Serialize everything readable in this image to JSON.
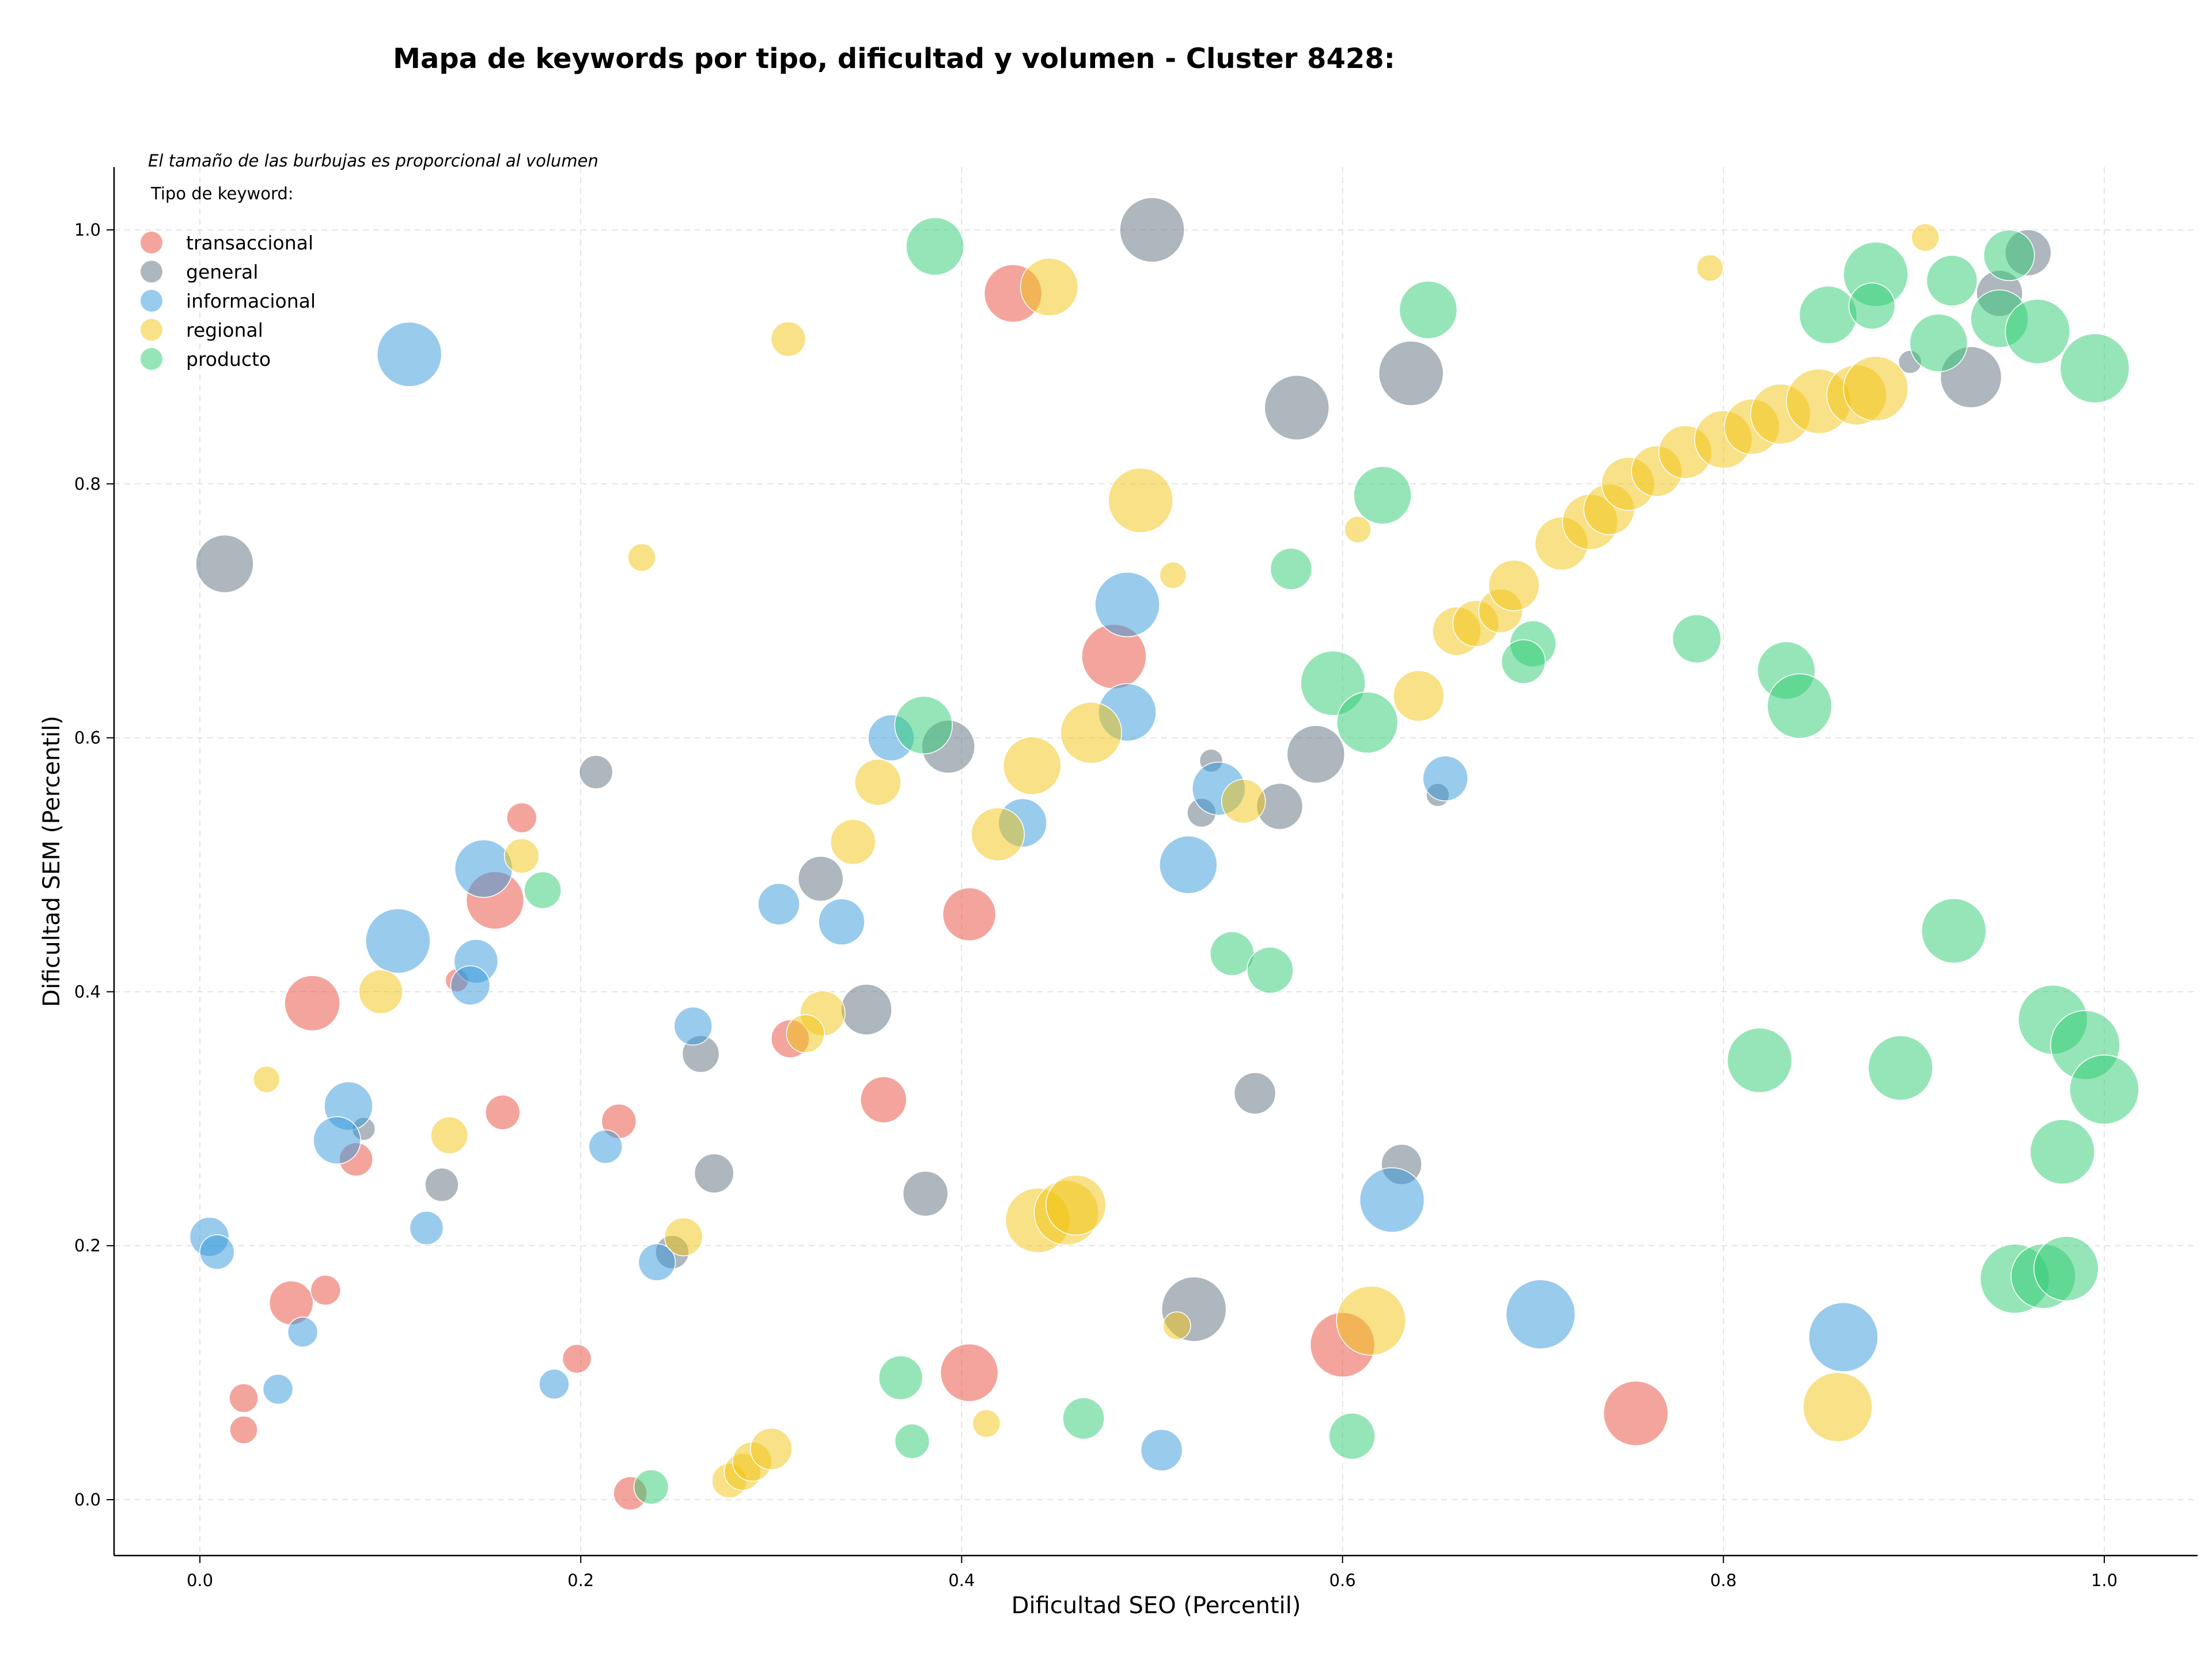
{
  "chart_data": {
    "type": "scatter",
    "title": "Mapa de keywords por tipo, dificultad y volumen - Cluster 8428:",
    "subtitle": "El tamaño de las burbujas es proporcional al volumen",
    "xlabel": "Dificultad SEO (Percentil)",
    "ylabel": "Dificultad SEM (Percentil)",
    "xlim": [
      -0.045,
      1.05
    ],
    "ylim": [
      -0.045,
      1.05
    ],
    "xticks": [
      "0.0",
      "0.2",
      "0.4",
      "0.6",
      "0.8",
      "1.0"
    ],
    "yticks": [
      "0.0",
      "0.2",
      "0.4",
      "0.6",
      "0.8",
      "1.0"
    ],
    "grid": true,
    "legend_title": "Tipo de keyword:",
    "legend_position": "top-left",
    "series": [
      {
        "name": "transaccional",
        "color": "#e74c3c",
        "points": [
          [
            0.427,
            0.95,
            50
          ],
          [
            0.155,
            0.472,
            50
          ],
          [
            0.059,
            0.391,
            48
          ],
          [
            0.169,
            0.537,
            26
          ],
          [
            0.48,
            0.664,
            56
          ],
          [
            0.404,
            0.461,
            46
          ],
          [
            0.31,
            0.363,
            33
          ],
          [
            0.359,
            0.315,
            40
          ],
          [
            0.159,
            0.305,
            30
          ],
          [
            0.22,
            0.298,
            30
          ],
          [
            0.082,
            0.268,
            29
          ],
          [
            0.135,
            0.409,
            20
          ],
          [
            0.048,
            0.155,
            38
          ],
          [
            0.066,
            0.165,
            26
          ],
          [
            0.023,
            0.08,
            25
          ],
          [
            0.023,
            0.055,
            24
          ],
          [
            0.198,
            0.111,
            25
          ],
          [
            0.226,
            0.005,
            29
          ],
          [
            0.404,
            0.1,
            50
          ],
          [
            0.6,
            0.122,
            56
          ],
          [
            0.754,
            0.068,
            56
          ]
        ]
      },
      {
        "name": "general",
        "color": "#5d6d7e",
        "points": [
          [
            0.5,
            1.0,
            56
          ],
          [
            0.013,
            0.737,
            50
          ],
          [
            0.576,
            0.86,
            56
          ],
          [
            0.636,
            0.887,
            56
          ],
          [
            0.208,
            0.573,
            29
          ],
          [
            0.393,
            0.593,
            46
          ],
          [
            0.326,
            0.489,
            39
          ],
          [
            0.35,
            0.386,
            44
          ],
          [
            0.263,
            0.351,
            32
          ],
          [
            0.27,
            0.257,
            34
          ],
          [
            0.381,
            0.241,
            39
          ],
          [
            0.127,
            0.248,
            29
          ],
          [
            0.086,
            0.292,
            20
          ],
          [
            0.248,
            0.195,
            29
          ],
          [
            0.586,
            0.587,
            50
          ],
          [
            0.531,
            0.582,
            20
          ],
          [
            0.567,
            0.546,
            40
          ],
          [
            0.526,
            0.541,
            25
          ],
          [
            0.65,
            0.555,
            20
          ],
          [
            0.631,
            0.264,
            35
          ],
          [
            0.554,
            0.32,
            36
          ],
          [
            0.522,
            0.15,
            56
          ],
          [
            0.93,
            0.884,
            53
          ],
          [
            0.96,
            0.982,
            40
          ],
          [
            0.898,
            0.896,
            20
          ],
          [
            0.945,
            0.95,
            40
          ]
        ]
      },
      {
        "name": "informacional",
        "color": "#3498db",
        "points": [
          [
            0.11,
            0.902,
            56
          ],
          [
            0.104,
            0.44,
            56
          ],
          [
            0.149,
            0.497,
            50
          ],
          [
            0.145,
            0.424,
            38
          ],
          [
            0.142,
            0.405,
            34
          ],
          [
            0.078,
            0.31,
            42
          ],
          [
            0.072,
            0.283,
            41
          ],
          [
            0.005,
            0.207,
            34
          ],
          [
            0.009,
            0.195,
            30
          ],
          [
            0.054,
            0.132,
            26
          ],
          [
            0.041,
            0.087,
            26
          ],
          [
            0.119,
            0.214,
            29
          ],
          [
            0.213,
            0.278,
            29
          ],
          [
            0.259,
            0.373,
            33
          ],
          [
            0.24,
            0.187,
            32
          ],
          [
            0.186,
            0.091,
            26
          ],
          [
            0.304,
            0.469,
            36
          ],
          [
            0.337,
            0.455,
            40
          ],
          [
            0.363,
            0.6,
            40
          ],
          [
            0.432,
            0.533,
            42
          ],
          [
            0.487,
            0.705,
            56
          ],
          [
            0.487,
            0.62,
            50
          ],
          [
            0.519,
            0.5,
            50
          ],
          [
            0.535,
            0.56,
            46
          ],
          [
            0.654,
            0.568,
            39
          ],
          [
            0.626,
            0.236,
            56
          ],
          [
            0.704,
            0.146,
            60
          ],
          [
            0.863,
            0.128,
            60
          ],
          [
            0.505,
            0.039,
            36
          ]
        ]
      },
      {
        "name": "regional",
        "color": "#f1c40f",
        "points": [
          [
            0.446,
            0.955,
            50
          ],
          [
            0.309,
            0.914,
            30
          ],
          [
            0.232,
            0.742,
            24
          ],
          [
            0.494,
            0.787,
            56
          ],
          [
            0.511,
            0.728,
            23
          ],
          [
            0.608,
            0.764,
            23
          ],
          [
            0.468,
            0.604,
            53
          ],
          [
            0.437,
            0.578,
            50
          ],
          [
            0.356,
            0.565,
            40
          ],
          [
            0.343,
            0.518,
            39
          ],
          [
            0.419,
            0.524,
            46
          ],
          [
            0.548,
            0.55,
            38
          ],
          [
            0.327,
            0.383,
            39
          ],
          [
            0.318,
            0.367,
            33
          ],
          [
            0.095,
            0.4,
            38
          ],
          [
            0.035,
            0.331,
            23
          ],
          [
            0.131,
            0.287,
            32
          ],
          [
            0.169,
            0.507,
            30
          ],
          [
            0.254,
            0.207,
            33
          ],
          [
            0.44,
            0.22,
            56
          ],
          [
            0.455,
            0.226,
            56
          ],
          [
            0.46,
            0.232,
            52
          ],
          [
            0.513,
            0.137,
            24
          ],
          [
            0.615,
            0.141,
            60
          ],
          [
            0.86,
            0.073,
            60
          ],
          [
            0.413,
            0.06,
            24
          ],
          [
            0.278,
            0.015,
            30
          ],
          [
            0.285,
            0.022,
            32
          ],
          [
            0.29,
            0.03,
            34
          ],
          [
            0.3,
            0.04,
            36
          ],
          [
            0.64,
            0.633,
            44
          ],
          [
            0.66,
            0.684,
            42
          ],
          [
            0.67,
            0.69,
            40
          ],
          [
            0.683,
            0.7,
            38
          ],
          [
            0.69,
            0.72,
            44
          ],
          [
            0.715,
            0.753,
            46
          ],
          [
            0.73,
            0.77,
            48
          ],
          [
            0.74,
            0.78,
            44
          ],
          [
            0.75,
            0.8,
            46
          ],
          [
            0.765,
            0.81,
            44
          ],
          [
            0.78,
            0.825,
            46
          ],
          [
            0.8,
            0.835,
            50
          ],
          [
            0.815,
            0.845,
            48
          ],
          [
            0.83,
            0.855,
            52
          ],
          [
            0.85,
            0.865,
            56
          ],
          [
            0.87,
            0.87,
            52
          ],
          [
            0.88,
            0.875,
            56
          ],
          [
            0.793,
            0.97,
            23
          ],
          [
            0.906,
            0.994,
            24
          ]
        ]
      },
      {
        "name": "producto",
        "color": "#2ecc71",
        "points": [
          [
            0.386,
            0.987,
            50
          ],
          [
            0.645,
            0.937,
            50
          ],
          [
            0.621,
            0.791,
            50
          ],
          [
            0.573,
            0.733,
            36
          ],
          [
            0.38,
            0.61,
            50
          ],
          [
            0.595,
            0.643,
            56
          ],
          [
            0.613,
            0.612,
            53
          ],
          [
            0.7,
            0.674,
            40
          ],
          [
            0.695,
            0.66,
            38
          ],
          [
            0.786,
            0.678,
            42
          ],
          [
            0.833,
            0.653,
            50
          ],
          [
            0.84,
            0.625,
            56
          ],
          [
            0.542,
            0.43,
            38
          ],
          [
            0.562,
            0.417,
            40
          ],
          [
            0.18,
            0.48,
            32
          ],
          [
            0.819,
            0.346,
            56
          ],
          [
            0.921,
            0.448,
            56
          ],
          [
            0.893,
            0.34,
            56
          ],
          [
            0.973,
            0.378,
            60
          ],
          [
            0.99,
            0.358,
            60
          ],
          [
            1.0,
            0.323,
            60
          ],
          [
            0.978,
            0.274,
            56
          ],
          [
            0.953,
            0.174,
            60
          ],
          [
            0.968,
            0.176,
            56
          ],
          [
            0.98,
            0.182,
            56
          ],
          [
            0.855,
            0.933,
            50
          ],
          [
            0.88,
            0.965,
            56
          ],
          [
            0.878,
            0.94,
            40
          ],
          [
            0.92,
            0.96,
            44
          ],
          [
            0.95,
            0.98,
            44
          ],
          [
            0.945,
            0.93,
            50
          ],
          [
            0.913,
            0.911,
            50
          ],
          [
            0.965,
            0.92,
            56
          ],
          [
            0.995,
            0.891,
            60
          ],
          [
            0.368,
            0.096,
            38
          ],
          [
            0.374,
            0.046,
            30
          ],
          [
            0.464,
            0.064,
            36
          ],
          [
            0.605,
            0.05,
            40
          ],
          [
            0.237,
            0.01,
            30
          ]
        ]
      }
    ]
  }
}
